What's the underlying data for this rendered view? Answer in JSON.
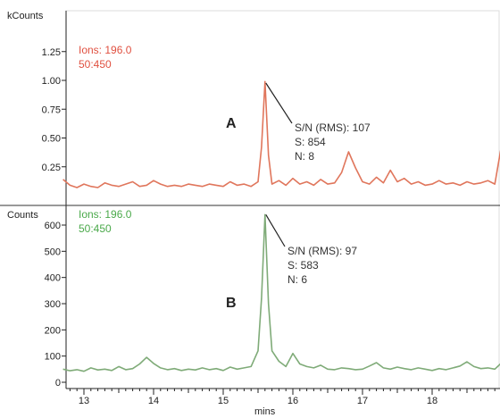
{
  "colors": {
    "trace_a": "#e0765c",
    "trace_b": "#7fab78",
    "ion_a": "#e05040",
    "ion_b": "#4aa94a",
    "axis": "#222222"
  },
  "chart_data": [
    {
      "type": "line",
      "panel": "A",
      "y_unit_label": "kCounts",
      "ion_label": [
        "Ions: 196.0",
        "50:450"
      ],
      "ylim": [
        0,
        1.3
      ],
      "y_ticks": [
        {
          "value": 0.25,
          "label": "0.25"
        },
        {
          "value": 0.5,
          "label": "0.50"
        },
        {
          "value": 0.75,
          "label": "0.75"
        },
        {
          "value": 1.0,
          "label": "1.00"
        },
        {
          "value": 1.25,
          "label": "1.25"
        }
      ],
      "annotation": [
        "S/N (RMS): 107",
        "S: 854",
        "N: 8"
      ],
      "peak": {
        "x": 15.6,
        "y": 1.0
      },
      "series": [
        {
          "x": [
            12.7,
            12.8,
            12.9,
            13.0,
            13.1,
            13.2,
            13.3,
            13.4,
            13.5,
            13.6,
            13.7,
            13.8,
            13.9,
            14.0,
            14.1,
            14.2,
            14.3,
            14.4,
            14.5,
            14.6,
            14.7,
            14.8,
            14.9,
            15.0,
            15.1,
            15.2,
            15.3,
            15.4,
            15.5,
            15.55,
            15.6,
            15.65,
            15.7,
            15.8,
            15.9,
            16.0,
            16.1,
            16.2,
            16.3,
            16.4,
            16.5,
            16.6,
            16.7,
            16.8,
            16.9,
            17.0,
            17.1,
            17.2,
            17.3,
            17.4,
            17.5,
            17.6,
            17.7,
            17.8,
            17.9,
            18.0,
            18.1,
            18.2,
            18.3,
            18.4,
            18.5,
            18.6,
            18.7,
            18.8,
            18.9,
            19.0
          ],
          "y": [
            0.14,
            0.09,
            0.07,
            0.1,
            0.08,
            0.07,
            0.11,
            0.09,
            0.08,
            0.1,
            0.12,
            0.08,
            0.09,
            0.13,
            0.1,
            0.08,
            0.09,
            0.08,
            0.1,
            0.09,
            0.08,
            0.1,
            0.09,
            0.08,
            0.12,
            0.09,
            0.1,
            0.08,
            0.12,
            0.42,
            0.99,
            0.35,
            0.1,
            0.13,
            0.09,
            0.15,
            0.1,
            0.12,
            0.09,
            0.14,
            0.1,
            0.11,
            0.2,
            0.38,
            0.24,
            0.12,
            0.1,
            0.16,
            0.11,
            0.22,
            0.12,
            0.15,
            0.1,
            0.12,
            0.09,
            0.1,
            0.13,
            0.1,
            0.11,
            0.09,
            0.12,
            0.1,
            0.11,
            0.13,
            0.1,
            0.45
          ]
        }
      ]
    },
    {
      "type": "line",
      "panel": "B",
      "y_unit_label": "Counts",
      "ion_label": [
        "Ions: 196.0",
        "50:450"
      ],
      "ylim": [
        0,
        660
      ],
      "y_ticks": [
        {
          "value": 0,
          "label": "0"
        },
        {
          "value": 100,
          "label": "100"
        },
        {
          "value": 200,
          "label": "200"
        },
        {
          "value": 300,
          "label": "300"
        },
        {
          "value": 400,
          "label": "400"
        },
        {
          "value": 500,
          "label": "500"
        },
        {
          "value": 600,
          "label": "600"
        }
      ],
      "annotation": [
        "S/N (RMS): 97",
        "S: 583",
        "N: 6"
      ],
      "peak": {
        "x": 15.6,
        "y": 650
      },
      "xlabel": "mins",
      "xlim": [
        12.7,
        19.05
      ],
      "x_ticks": [
        {
          "value": 13,
          "label": "13"
        },
        {
          "value": 14,
          "label": "14"
        },
        {
          "value": 15,
          "label": "15"
        },
        {
          "value": 16,
          "label": "16"
        },
        {
          "value": 17,
          "label": "17"
        },
        {
          "value": 18,
          "label": "18"
        }
      ],
      "series": [
        {
          "x": [
            12.7,
            12.8,
            12.9,
            13.0,
            13.1,
            13.2,
            13.3,
            13.4,
            13.5,
            13.6,
            13.7,
            13.8,
            13.9,
            14.0,
            14.1,
            14.2,
            14.3,
            14.4,
            14.5,
            14.6,
            14.7,
            14.8,
            14.9,
            15.0,
            15.1,
            15.2,
            15.3,
            15.4,
            15.5,
            15.55,
            15.6,
            15.65,
            15.7,
            15.8,
            15.9,
            16.0,
            16.1,
            16.2,
            16.3,
            16.4,
            16.5,
            16.6,
            16.7,
            16.8,
            16.9,
            17.0,
            17.1,
            17.2,
            17.3,
            17.4,
            17.5,
            17.6,
            17.7,
            17.8,
            17.9,
            18.0,
            18.1,
            18.2,
            18.3,
            18.4,
            18.5,
            18.6,
            18.7,
            18.8,
            18.9,
            19.0
          ],
          "y": [
            50,
            44,
            48,
            42,
            55,
            47,
            50,
            45,
            60,
            48,
            52,
            70,
            95,
            72,
            55,
            48,
            52,
            45,
            50,
            47,
            55,
            48,
            52,
            45,
            58,
            50,
            55,
            60,
            120,
            320,
            640,
            300,
            120,
            80,
            60,
            110,
            70,
            60,
            55,
            65,
            50,
            48,
            55,
            52,
            48,
            50,
            62,
            75,
            55,
            50,
            58,
            52,
            48,
            55,
            50,
            45,
            52,
            48,
            55,
            62,
            78,
            60,
            52,
            55,
            50,
            75
          ]
        }
      ]
    }
  ]
}
